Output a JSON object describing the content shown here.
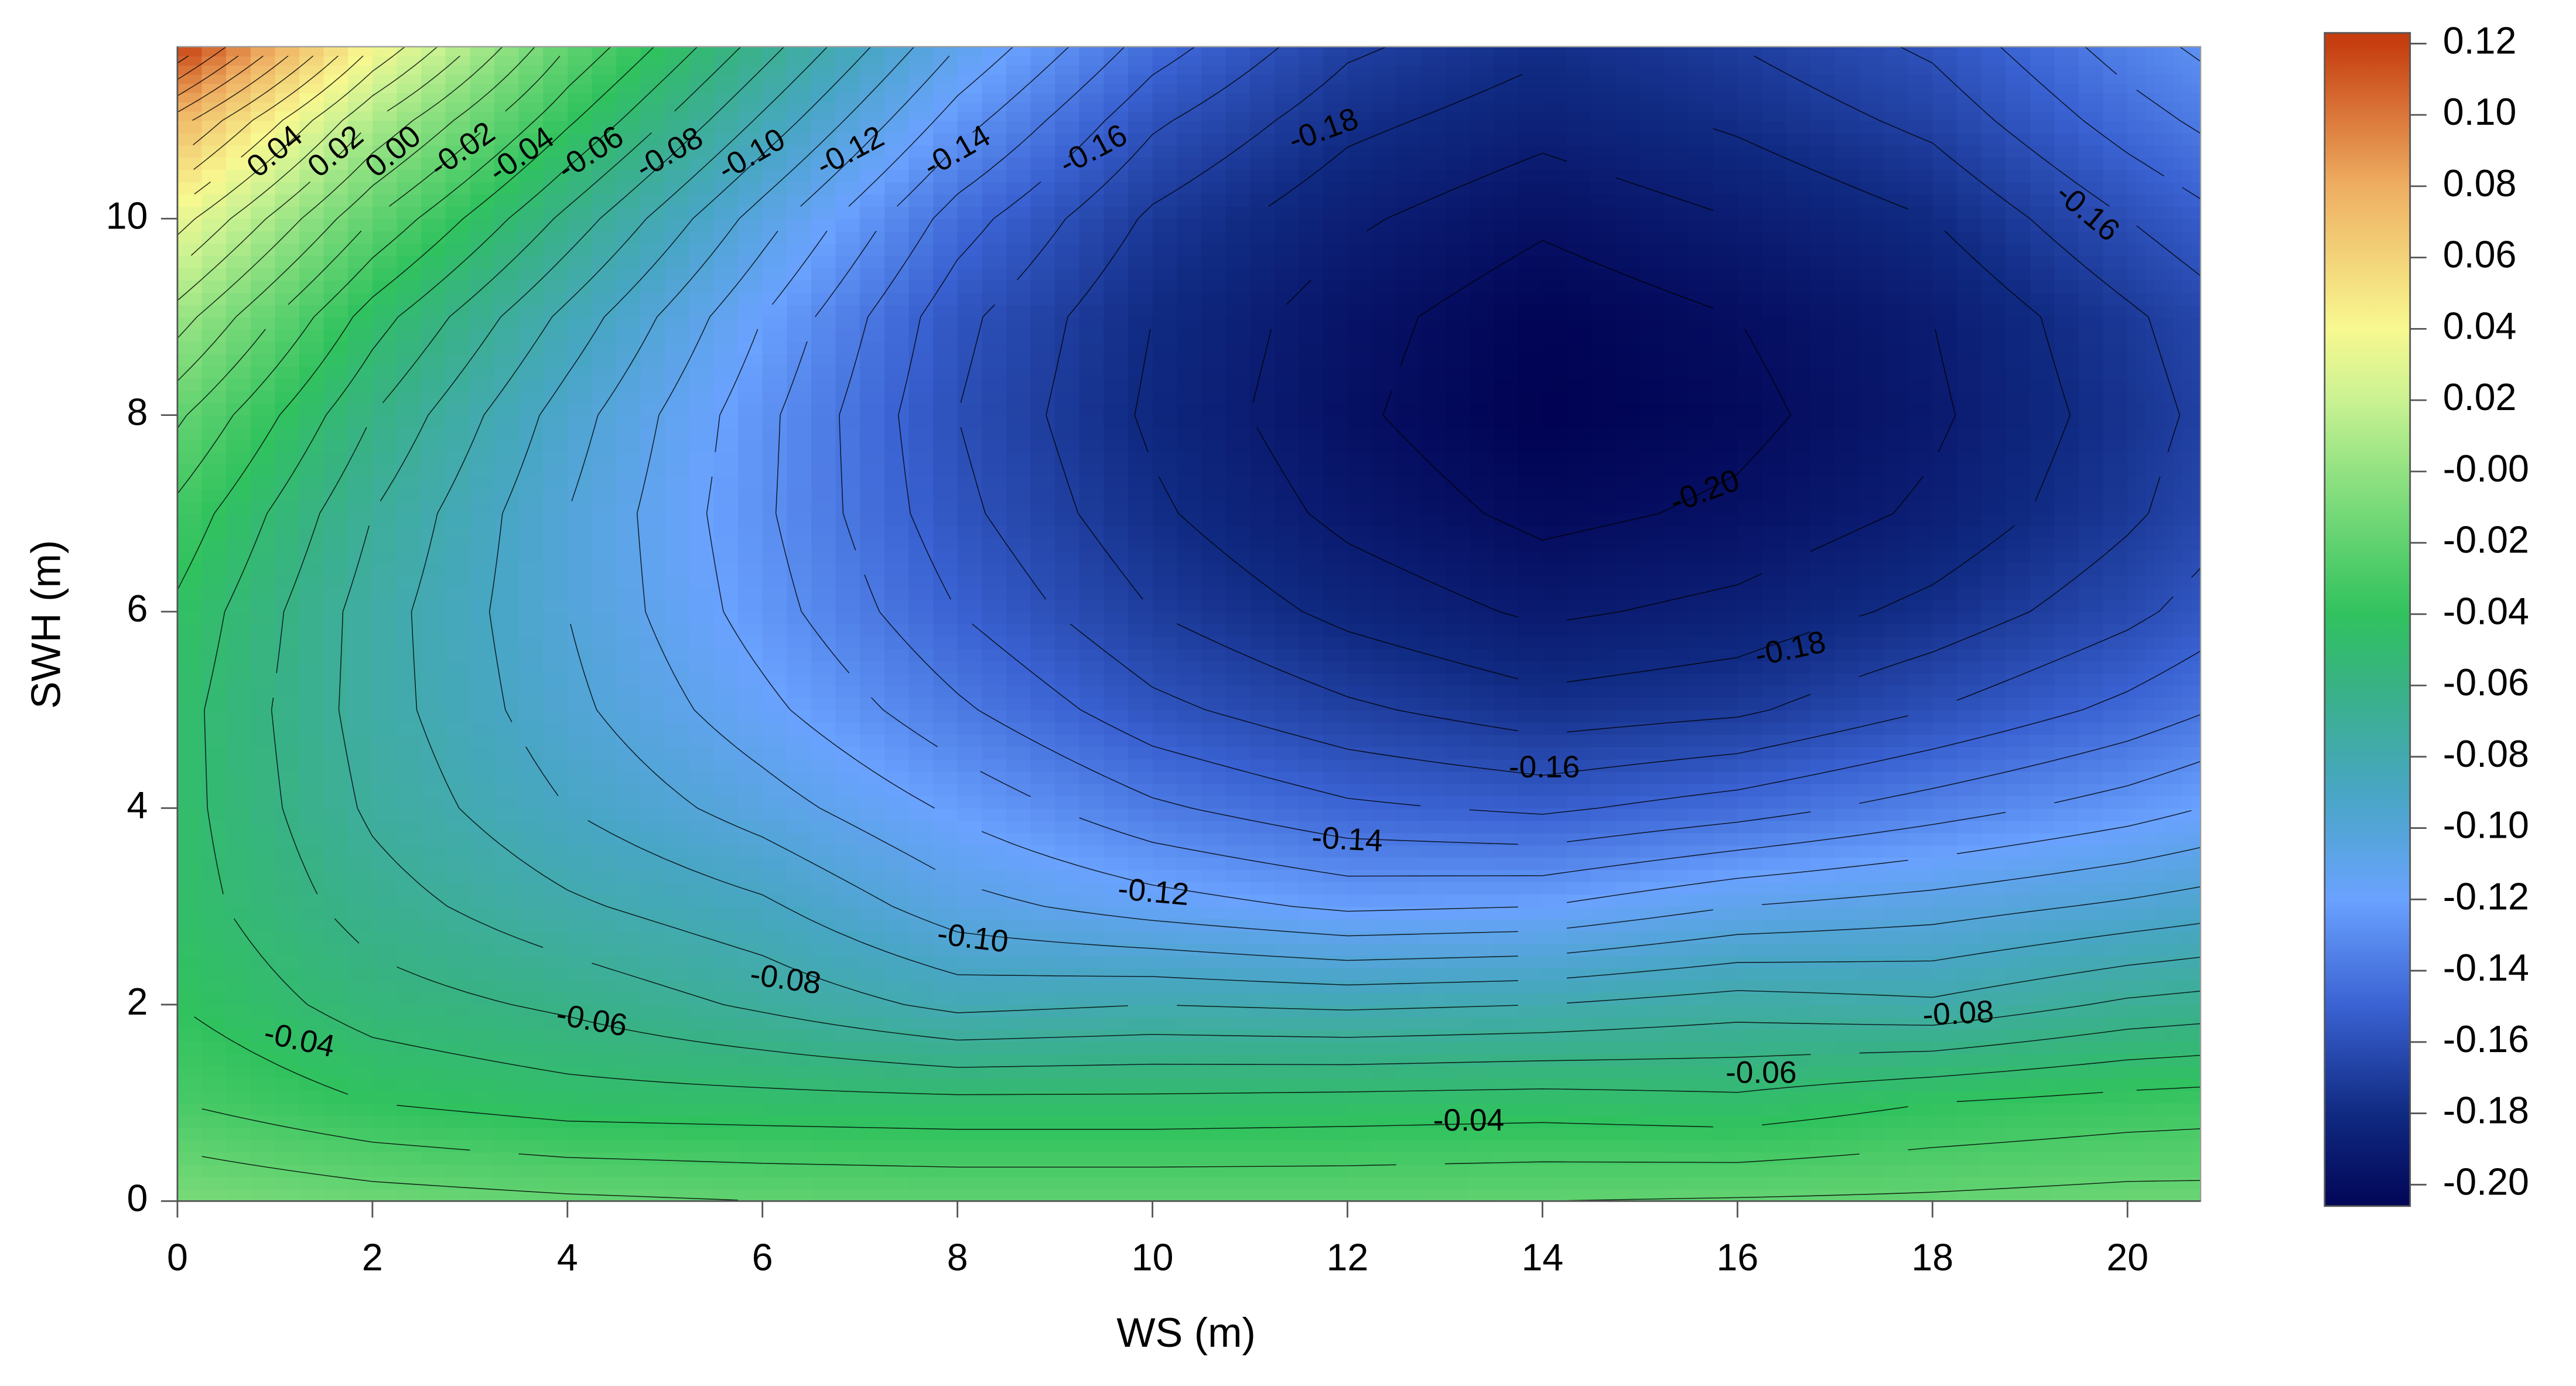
{
  "chart_data": {
    "type": "contour",
    "x_label": "WS (m)",
    "y_label": "SWH (m)",
    "xlim": [
      0,
      20.75
    ],
    "ylim": [
      0,
      11.75
    ],
    "xticks": [
      0,
      2,
      4,
      6,
      8,
      10,
      12,
      14,
      16,
      18,
      20
    ],
    "yticks": [
      0,
      2,
      4,
      6,
      8,
      10
    ],
    "x": [
      0,
      2,
      4,
      6,
      8,
      10,
      12,
      14,
      16,
      18,
      20,
      20.75
    ],
    "y": [
      0,
      1,
      2,
      3,
      4,
      5,
      6,
      7,
      8,
      9,
      10,
      11,
      11.75
    ],
    "z": [
      [
        -0.01,
        -0.015,
        -0.018,
        -0.02,
        -0.021,
        -0.021,
        -0.021,
        -0.02,
        -0.019,
        -0.018,
        -0.016,
        -0.016
      ],
      [
        -0.03,
        -0.04,
        -0.045,
        -0.046,
        -0.047,
        -0.047,
        -0.046,
        -0.045,
        -0.047,
        -0.04,
        -0.036,
        -0.035
      ],
      [
        -0.04,
        -0.055,
        -0.062,
        -0.072,
        -0.083,
        -0.08,
        -0.082,
        -0.08,
        -0.075,
        -0.078,
        -0.068,
        -0.066
      ],
      [
        -0.045,
        -0.065,
        -0.078,
        -0.088,
        -0.106,
        -0.115,
        -0.122,
        -0.12,
        -0.11,
        -0.105,
        -0.098,
        -0.095
      ],
      [
        -0.046,
        -0.072,
        -0.09,
        -0.105,
        -0.122,
        -0.138,
        -0.148,
        -0.152,
        -0.145,
        -0.135,
        -0.125,
        -0.12
      ],
      [
        -0.046,
        -0.075,
        -0.097,
        -0.117,
        -0.138,
        -0.157,
        -0.168,
        -0.176,
        -0.172,
        -0.16,
        -0.147,
        -0.141
      ],
      [
        -0.042,
        -0.075,
        -0.1,
        -0.125,
        -0.15,
        -0.17,
        -0.183,
        -0.192,
        -0.187,
        -0.177,
        -0.163,
        -0.156
      ],
      [
        -0.033,
        -0.07,
        -0.1,
        -0.128,
        -0.157,
        -0.178,
        -0.193,
        -0.203,
        -0.198,
        -0.188,
        -0.172,
        -0.165
      ],
      [
        -0.018,
        -0.06,
        -0.095,
        -0.127,
        -0.16,
        -0.182,
        -0.198,
        -0.209,
        -0.203,
        -0.192,
        -0.175,
        -0.168
      ],
      [
        0.005,
        -0.045,
        -0.083,
        -0.12,
        -0.157,
        -0.18,
        -0.196,
        -0.207,
        -0.2,
        -0.19,
        -0.172,
        -0.165
      ],
      [
        0.035,
        -0.02,
        -0.063,
        -0.105,
        -0.145,
        -0.172,
        -0.188,
        -0.198,
        -0.19,
        -0.18,
        -0.16,
        -0.153
      ],
      [
        0.075,
        0.01,
        -0.038,
        -0.082,
        -0.125,
        -0.158,
        -0.177,
        -0.186,
        -0.178,
        -0.167,
        -0.145,
        -0.138
      ],
      [
        0.12,
        0.04,
        -0.02,
        -0.065,
        -0.11,
        -0.145,
        -0.168,
        -0.178,
        -0.17,
        -0.158,
        -0.135,
        -0.128
      ]
    ],
    "zlim": [
      -0.206,
      0.123
    ],
    "colorscale": [
      [
        -0.21,
        "#000050"
      ],
      [
        -0.18,
        "#102a82"
      ],
      [
        -0.15,
        "#3a62d2"
      ],
      [
        -0.12,
        "#6aa2ff"
      ],
      [
        -0.09,
        "#48a6c4"
      ],
      [
        -0.06,
        "#38b284"
      ],
      [
        -0.04,
        "#30c25e"
      ],
      [
        0.0,
        "#92e282"
      ],
      [
        0.02,
        "#caf292"
      ],
      [
        0.04,
        "#f8f890"
      ],
      [
        0.08,
        "#eeae62"
      ],
      [
        0.12,
        "#c63e10"
      ]
    ],
    "contour_levels": [
      -0.2,
      -0.19,
      -0.18,
      -0.17,
      -0.16,
      -0.15,
      -0.14,
      -0.13,
      -0.12,
      -0.11,
      -0.1,
      -0.09,
      -0.08,
      -0.07,
      -0.06,
      -0.05,
      -0.04,
      -0.03,
      -0.02,
      -0.01,
      0.0,
      0.01,
      0.02,
      0.03,
      0.04,
      0.05,
      0.06,
      0.07,
      0.08,
      0.09,
      0.1,
      0.11
    ],
    "contour_labels": [
      0.04,
      0.02,
      {
        "value": 0,
        "label": "0.00"
      },
      -0.02,
      -0.04,
      -0.06,
      -0.08,
      {
        "value": -0.1,
        "label": "-0.10"
      },
      -0.12,
      -0.14,
      -0.16,
      -0.18,
      -0.16,
      {
        "value": -0.2,
        "label": "-0.20"
      },
      -0.18,
      -0.16,
      -0.14,
      -0.12,
      {
        "value": -0.1,
        "label": "-0.10"
      },
      -0.08,
      -0.06,
      -0.04,
      -0.08,
      -0.06,
      -0.04
    ],
    "colorbar_ticks": [
      0.12,
      {
        "value": 0.1,
        "label": "0.10"
      },
      0.08,
      0.06,
      0.04,
      0.02,
      {
        "value": 0,
        "label": "-0.00"
      },
      -0.02,
      -0.04,
      -0.06,
      -0.08,
      {
        "value": -0.1,
        "label": "-0.10"
      },
      -0.12,
      -0.14,
      -0.16,
      -0.18,
      {
        "value": -0.2,
        "label": "-0.20"
      }
    ]
  }
}
